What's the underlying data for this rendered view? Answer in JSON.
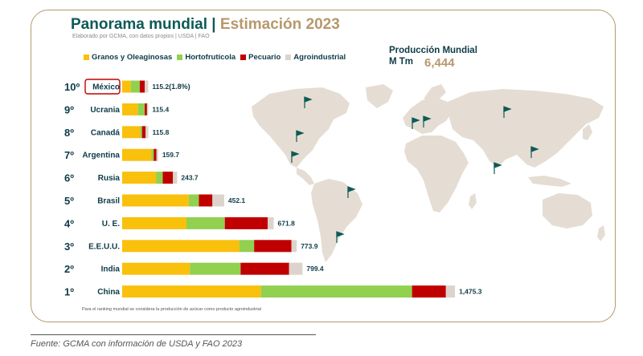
{
  "title": {
    "main": "Panorama mundial",
    "separator": "|",
    "sub": "Estimación 2023",
    "subtitle": "Elaborado por GCMA, con datos propios | USDA | FAO"
  },
  "production": {
    "label": "Producción Mundial",
    "unit": "M Tm",
    "value": "6,444"
  },
  "footnote": "Para el ranking mundial se considera la producción de azúcar como producto agroindustrial",
  "source": "Fuente: GCMA con información de USDA y FAO 2023",
  "colors": {
    "granos": "#f9c00c",
    "hortofruticola": "#92d050",
    "pecuario": "#c00000",
    "agroindustrial": "#dcd4cc",
    "map": "#e5ddd3",
    "flag": "#0e5a55",
    "accent": "#b7986b",
    "highlight": "#c00000"
  },
  "chart_data": {
    "type": "bar",
    "orientation": "horizontal",
    "stacked": true,
    "title": "Panorama mundial | Estimación 2023",
    "xlabel": "",
    "ylabel": "",
    "xlim": [
      0,
      1500
    ],
    "legend": [
      "Granos y Oleaginosas",
      "Hortofrutícola",
      "Pecuario",
      "Agroindustrial"
    ],
    "legend_position": "top-left",
    "categories": [
      {
        "rank": "10º",
        "country": "México",
        "total": "115.2",
        "extra": "(1.8%)",
        "highlight": true
      },
      {
        "rank": "9º",
        "country": "Ucrania",
        "total": "115.4"
      },
      {
        "rank": "8º",
        "country": "Canadá",
        "total": "115.8"
      },
      {
        "rank": "7º",
        "country": "Argentina",
        "total": "159.7"
      },
      {
        "rank": "6º",
        "country": "Rusia",
        "total": "243.7"
      },
      {
        "rank": "5º",
        "country": "Brasil",
        "total": "452.1"
      },
      {
        "rank": "4º",
        "country": "U. E.",
        "total": "671.8"
      },
      {
        "rank": "3º",
        "country": "E.E.U.U.",
        "total": "773.9"
      },
      {
        "rank": "2º",
        "country": "India",
        "total": "799.4"
      },
      {
        "rank": "1º",
        "country": "China",
        "total": "1,475.3"
      }
    ],
    "series": [
      {
        "name": "Granos y Oleaginosas",
        "values": [
          38,
          70,
          80,
          130,
          150,
          295,
          285,
          520,
          300,
          615
        ]
      },
      {
        "name": "Hortofrutícola",
        "values": [
          40,
          30,
          8,
          10,
          30,
          45,
          170,
          65,
          225,
          670
        ]
      },
      {
        "name": "Pecuario",
        "values": [
          22,
          10,
          16,
          12,
          45,
          60,
          190,
          165,
          215,
          150
        ]
      },
      {
        "name": "Agroindustrial",
        "values": [
          15.2,
          5.4,
          11.8,
          7.7,
          18.7,
          52.1,
          26.8,
          23.9,
          59.4,
          40.3
        ]
      }
    ]
  }
}
